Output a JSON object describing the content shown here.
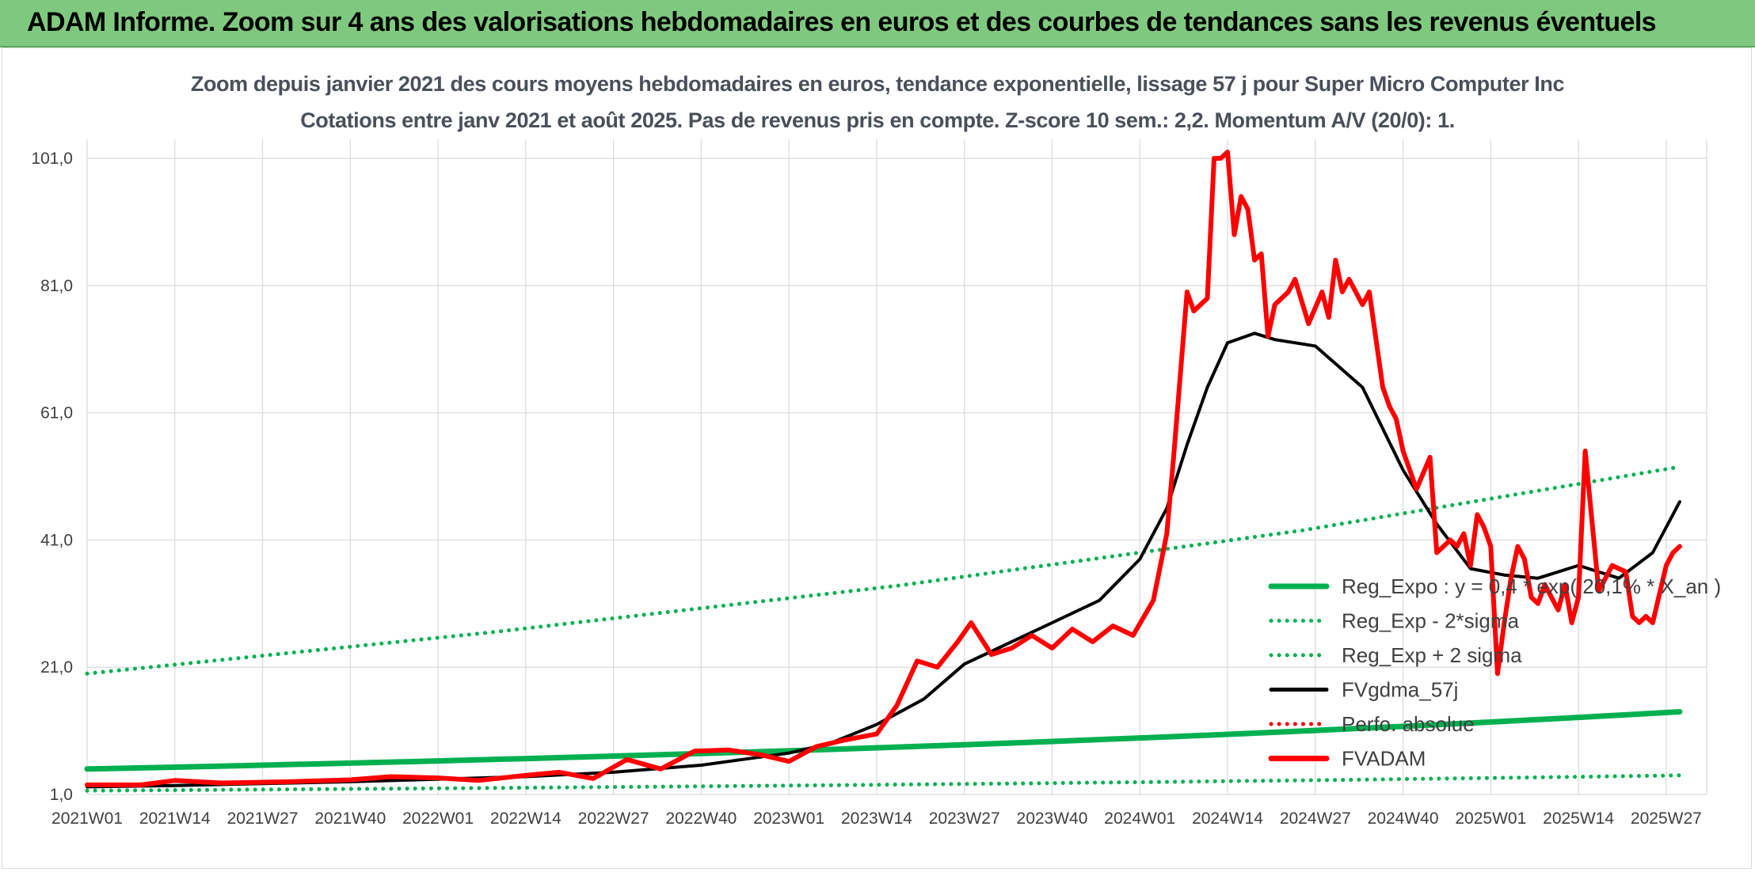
{
  "banner": {
    "title": "ADAM Informe. Zoom sur 4 ans des valorisations hebdomadaires en euros et des courbes de tendances sans les revenus éventuels",
    "color": "#7fc97f"
  },
  "chart_data": {
    "type": "line",
    "title": "Zoom depuis janvier 2021 des cours moyens hebdomadaires en euros, tendance exponentielle, lissage 57 j pour Super Micro Computer Inc",
    "subtitle": "Cotations entre janv 2021 et août 2025. Pas de revenus pris en compte. Z-score 10 sem.: 2,2. Momentum A/V (20/0): 1.",
    "xlabel": "",
    "ylabel": "",
    "ylim": [
      1,
      104
    ],
    "y_ticks": [
      "1,0",
      "21,0",
      "41,0",
      "61,0",
      "81,0",
      "101,0"
    ],
    "x_ticks": [
      "2021W01",
      "2021W14",
      "2021W27",
      "2021W40",
      "2022W01",
      "2022W14",
      "2022W27",
      "2022W40",
      "2023W01",
      "2023W14",
      "2023W27",
      "2023W40",
      "2024W01",
      "2024W14",
      "2024W27",
      "2024W40",
      "2025W01",
      "2025W14",
      "2025W27"
    ],
    "grid": true,
    "legend_position": "bottom-right",
    "series": [
      {
        "name": "Reg_Expo : y = 0,4 * exp( 20,1% * X_an )",
        "color": "#00b050",
        "style": "solid",
        "x": [
          0,
          236
        ],
        "y": [
          5.0,
          14.0
        ]
      },
      {
        "name": "Reg_Exp - 2*sigma",
        "color": "#00b050",
        "style": "dotted",
        "x": [
          0,
          236
        ],
        "y": [
          1.6,
          4.0
        ]
      },
      {
        "name": "Reg_Exp + 2 sigma",
        "color": "#00b050",
        "style": "dotted",
        "x": [
          0,
          60,
          120,
          180,
          236
        ],
        "y": [
          20.0,
          26.5,
          33.8,
          42.5,
          52.5
        ]
      },
      {
        "name": "FVgdma_57j",
        "color": "#000000",
        "style": "solid",
        "x": [
          0,
          13,
          26,
          39,
          52,
          65,
          78,
          91,
          104,
          110,
          117,
          124,
          130,
          137,
          143,
          150,
          156,
          160,
          163,
          166,
          169,
          173,
          176,
          182,
          189,
          195,
          200,
          205,
          210,
          215,
          221,
          227,
          232,
          236
        ],
        "y": [
          2.2,
          2.4,
          2.7,
          3.0,
          3.4,
          3.8,
          4.5,
          5.6,
          7.5,
          9.0,
          12.0,
          16.0,
          21.5,
          25.0,
          28.0,
          31.5,
          38.0,
          46.0,
          56.0,
          65.0,
          72.0,
          73.5,
          72.5,
          71.5,
          65.0,
          52.0,
          43.5,
          36.5,
          35.5,
          35.0,
          37.0,
          35.0,
          39.0,
          47.0
        ]
      },
      {
        "name": "Perfo. absolue",
        "color": "#ff0000",
        "style": "dotted",
        "x": [],
        "y": []
      },
      {
        "name": "FVADAM",
        "color": "#ff0000",
        "style": "solid",
        "x": [
          0,
          8,
          13,
          20,
          30,
          39,
          45,
          52,
          58,
          65,
          70,
          75,
          80,
          85,
          90,
          95,
          100,
          104,
          108,
          112,
          117,
          120,
          123,
          126,
          129,
          131,
          134,
          137,
          140,
          143,
          146,
          149,
          152,
          155,
          158,
          160,
          161,
          163,
          164,
          166,
          167,
          168,
          169,
          170,
          171,
          172,
          173,
          174,
          175,
          176,
          177,
          178,
          179,
          181,
          183,
          184,
          185,
          186,
          187,
          189,
          190,
          192,
          193,
          194,
          195,
          197,
          199,
          200,
          202,
          203,
          204,
          205,
          206,
          207,
          208,
          209,
          210,
          211,
          212,
          213,
          214,
          215,
          216,
          217,
          218,
          219,
          220,
          221,
          222,
          224,
          226,
          228,
          229,
          230,
          231,
          232,
          234,
          235,
          236
        ],
        "y": [
          2.5,
          2.5,
          3.2,
          2.8,
          3.0,
          3.3,
          3.8,
          3.6,
          3.2,
          4.0,
          4.5,
          3.5,
          6.5,
          5.0,
          7.8,
          8.0,
          7.2,
          6.2,
          8.5,
          9.5,
          10.5,
          15.0,
          22.0,
          21.0,
          25.0,
          28.0,
          23.0,
          24.0,
          26.0,
          24.0,
          27.0,
          25.0,
          27.5,
          26.0,
          31.5,
          42.0,
          54.0,
          80.0,
          77.0,
          79.0,
          101.0,
          101.0,
          102.0,
          89.0,
          95.0,
          93.0,
          85.0,
          86.0,
          73.0,
          78.0,
          79.0,
          80.0,
          82.0,
          75.0,
          80.0,
          76.0,
          85.0,
          80.0,
          82.0,
          78.0,
          80.0,
          65.0,
          62.0,
          60.0,
          55.0,
          49.0,
          54.0,
          39.0,
          41.0,
          40.0,
          42.0,
          37.0,
          45.0,
          43.0,
          40.0,
          20.0,
          28.0,
          35.0,
          40.0,
          38.0,
          32.0,
          31.0,
          34.0,
          32.0,
          30.0,
          34.0,
          28.0,
          32.0,
          55.0,
          33.0,
          37.0,
          36.0,
          29.0,
          28.0,
          29.0,
          28.0,
          37.0,
          39.0,
          40.0
        ]
      }
    ]
  }
}
